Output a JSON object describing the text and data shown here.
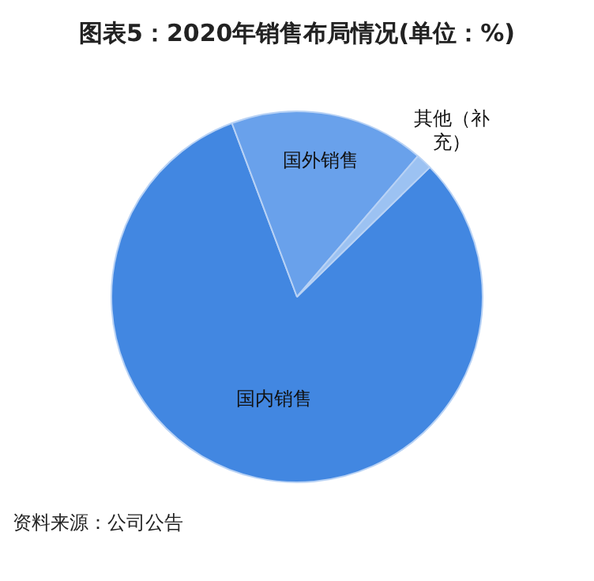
{
  "chart_data": {
    "type": "pie",
    "title": "图表5：2020年销售布局情况(单位：%)",
    "categories": [
      "国内销售",
      "国外销售",
      "其他（补充）"
    ],
    "values": [
      81.6,
      17.0,
      1.4
    ],
    "colors": [
      "#4287e1",
      "#69a1eb",
      "#9cc2f2"
    ],
    "legend": false,
    "annotations": [
      "资料来源：公司公告"
    ]
  }
}
